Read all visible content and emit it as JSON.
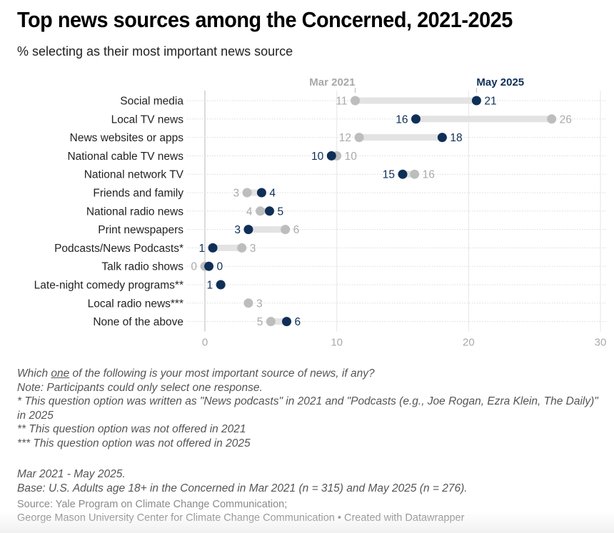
{
  "header": {
    "title": "Top news sources among the Concerned, 2021-2025",
    "subtitle": "% selecting as their most important news source"
  },
  "colors": {
    "mar2021": "#bdbdbd",
    "may2025": "#0f2f57",
    "range_bar": "#e3e3e3",
    "mar2021_label": "#a8a8a8"
  },
  "chart_data": {
    "type": "dot-range",
    "title": "Top news sources among the Concerned, 2021-2025",
    "subtitle": "% selecting as their most important news source",
    "xlabel": "",
    "ylabel": "",
    "xlim": [
      0,
      30
    ],
    "x_ticks": [
      0,
      10,
      20,
      30
    ],
    "grid": true,
    "legend": {
      "placement": "top",
      "entries": [
        "Mar 2021",
        "May 2025"
      ]
    },
    "categories": [
      "Social media",
      "Local TV news",
      "News websites or apps",
      "National cable TV news",
      "National network TV",
      "Friends and family",
      "National radio news",
      "Print newspapers",
      "Podcasts/News Podcasts*",
      "Talk radio shows",
      "Late-night comedy programs**",
      "Local radio news***",
      "None of the above"
    ],
    "series": [
      {
        "name": "Mar 2021",
        "values": [
          11.4,
          26.3,
          11.7,
          10.0,
          15.9,
          3.2,
          4.2,
          6.1,
          2.8,
          0.0,
          null,
          3.3,
          5.0
        ],
        "labels": [
          "11",
          "26",
          "12",
          "10",
          "16",
          "3",
          "4",
          "6",
          "3",
          "0",
          "",
          "3",
          "5"
        ]
      },
      {
        "name": "May 2025",
        "values": [
          20.6,
          16.0,
          18.0,
          9.6,
          15.0,
          4.3,
          4.9,
          3.3,
          0.6,
          0.3,
          1.2,
          null,
          6.2
        ],
        "labels": [
          "21",
          "16",
          "18",
          "10",
          "15",
          "4",
          "5",
          "3",
          "1",
          "0",
          "1",
          "",
          "6"
        ]
      }
    ]
  },
  "notes": {
    "question_pre": "Which ",
    "question_underline": "one",
    "question_post": " of the following is your most important source of news, if any?",
    "lines": [
      "Note: Participants could only select one response.",
      "* This question option was written as \"News podcasts\" in 2021 and \"Podcasts (e.g., Joe Rogan, Ezra Klein, The Daily)\" in 2025",
      "** This question option was not offered in 2021",
      "*** This question option was not offered in 2025"
    ]
  },
  "base": {
    "dates": "Mar 2021 - May 2025.",
    "base": "Base: U.S. Adults age 18+ in the Concerned in Mar 2021 (n = 315) and May 2025 (n = 276)."
  },
  "source": {
    "line1": "Source: Yale Program on Climate Change Communication;",
    "line2": "George Mason University Center for Climate Change Communication • Created with Datawrapper"
  }
}
